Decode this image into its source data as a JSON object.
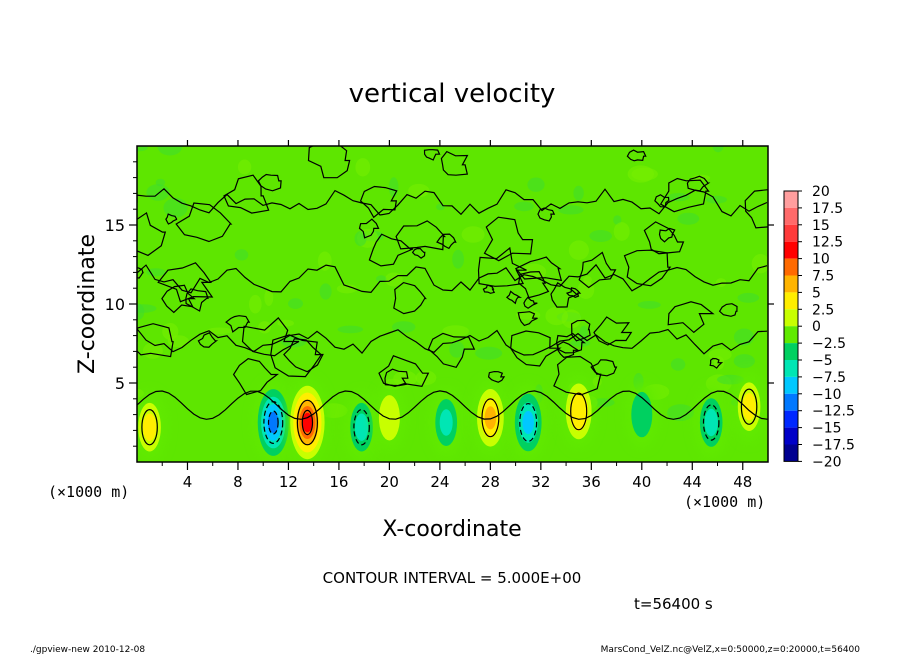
{
  "chart_data": {
    "type": "heatmap",
    "title": "vertical velocity",
    "xlabel": "X-coordinate",
    "ylabel": "Z-coordinate",
    "x_unit": "(×1000 m)",
    "y_unit": "(×1000 m)",
    "xlim": [
      0,
      50
    ],
    "ylim": [
      0,
      20
    ],
    "x_ticks": [
      4,
      8,
      12,
      16,
      20,
      24,
      28,
      32,
      36,
      40,
      44,
      48
    ],
    "y_ticks": [
      5,
      10,
      15
    ],
    "contour_interval_text": "CONTOUR INTERVAL = 5.000E+00",
    "time_text": "t=56400 s",
    "colorbar": {
      "labels": [
        "20",
        "17.5",
        "15",
        "12.5",
        "10",
        "7.5",
        "5",
        "2.5",
        "0",
        "−2.5",
        "−5",
        "−7.5",
        "−10",
        "−12.5",
        "−15",
        "−17.5",
        "−20"
      ],
      "colors": [
        "#ff9e9e",
        "#ff6a6a",
        "#ff3a3a",
        "#ff0000",
        "#ff6a00",
        "#ffb400",
        "#ffee00",
        "#c8ff00",
        "#60ea00",
        "#00d060",
        "#00e6b4",
        "#00c8ff",
        "#0078ff",
        "#0028ff",
        "#0000c8",
        "#000090",
        "#7a00b4"
      ]
    },
    "features": [
      {
        "x": 1.0,
        "z": 2.2,
        "value": 5
      },
      {
        "x": 10.8,
        "z": 2.5,
        "value": -10
      },
      {
        "x": 13.5,
        "z": 2.5,
        "value": 12
      },
      {
        "x": 17.8,
        "z": 2.2,
        "value": -5
      },
      {
        "x": 20,
        "z": 2.8,
        "value": 3
      },
      {
        "x": 24.5,
        "z": 2.5,
        "value": -4
      },
      {
        "x": 28,
        "z": 2.8,
        "value": 7
      },
      {
        "x": 31,
        "z": 2.5,
        "value": -7
      },
      {
        "x": 35,
        "z": 3.2,
        "value": 6
      },
      {
        "x": 40,
        "z": 3.0,
        "value": -3
      },
      {
        "x": 45.5,
        "z": 2.5,
        "value": -5
      },
      {
        "x": 48.5,
        "z": 3.5,
        "value": 5
      }
    ]
  },
  "footer": {
    "left": "./gpview-new  2010-12-08",
    "right": "MarsCond_VelZ.nc@VelZ,x=0:50000,z=0:20000,t=56400"
  }
}
